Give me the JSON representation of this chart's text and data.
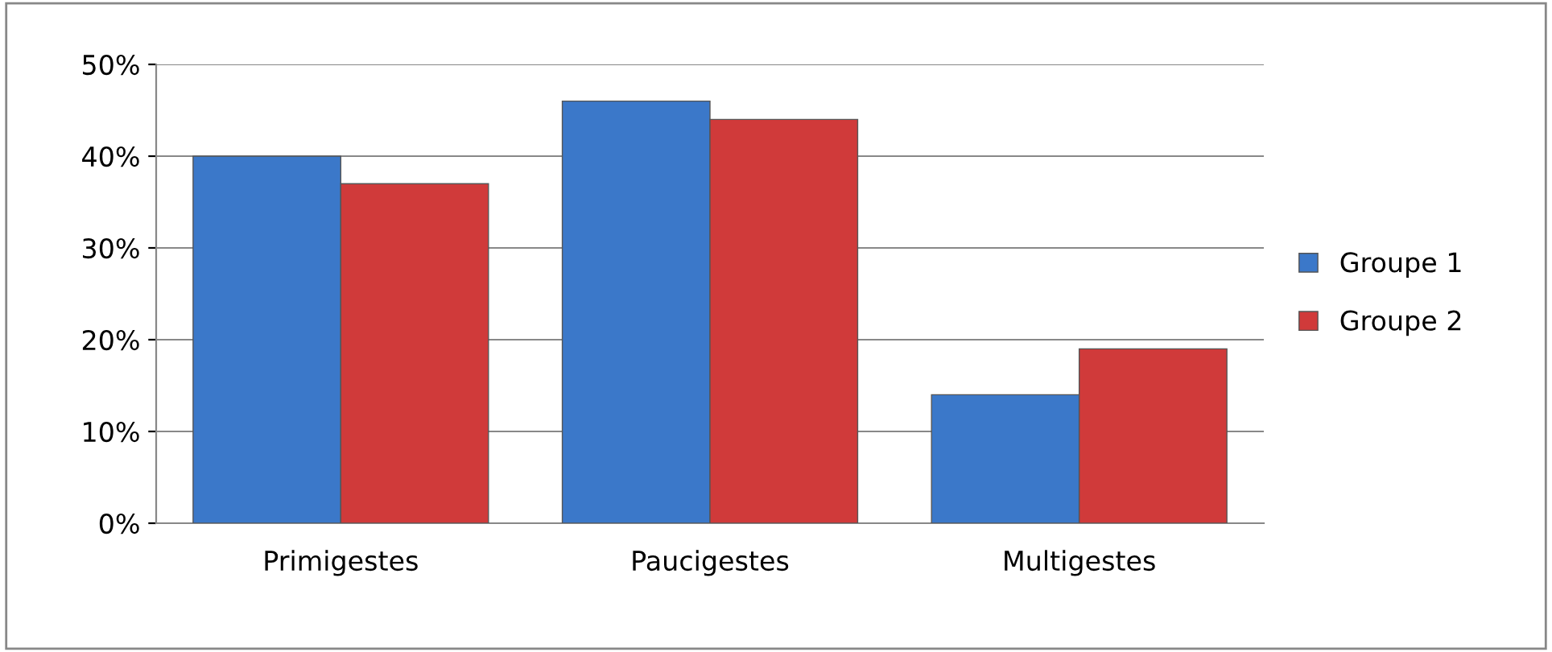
{
  "chart_data": {
    "type": "bar",
    "categories": [
      "Primigestes",
      "Paucigestes",
      "Multigestes"
    ],
    "series": [
      {
        "name": "Groupe 1",
        "color": "#3b78c9",
        "values": [
          40,
          46,
          14
        ]
      },
      {
        "name": "Groupe 2",
        "color": "#d03a3a",
        "values": [
          37,
          44,
          19
        ]
      }
    ],
    "ylim": [
      0,
      50
    ],
    "yticks": [
      {
        "value": 0,
        "label": "0%"
      },
      {
        "value": 10,
        "label": "10%"
      },
      {
        "value": 20,
        "label": "20%"
      },
      {
        "value": 30,
        "label": "30%"
      },
      {
        "value": 40,
        "label": "40%"
      },
      {
        "value": 50,
        "label": "50%"
      }
    ],
    "grid": "y",
    "legend": "right"
  }
}
